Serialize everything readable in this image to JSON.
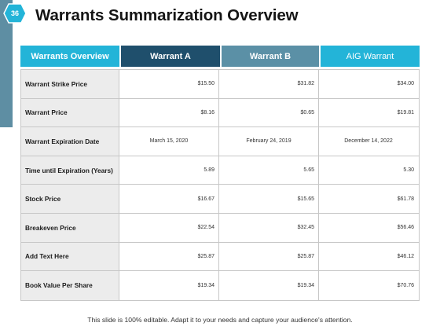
{
  "slide_number": "36",
  "title": "Warrants Summarization Overview",
  "table": {
    "headers": [
      "Warrants Overview",
      "Warrant A",
      "Warrant B",
      "AIG Warrant"
    ],
    "rows": [
      {
        "label": "Warrant Strike Price",
        "values": [
          "$15.50",
          "$31.82",
          "$34.00"
        ]
      },
      {
        "label": "Warrant Price",
        "values": [
          "$8.16",
          "$0.65",
          "$19.81"
        ]
      },
      {
        "label": "Warrant Expiration Date",
        "values": [
          "March 15, 2020",
          "February 24, 2019",
          "December 14, 2022"
        ]
      },
      {
        "label": "Time until Expiration (Years)",
        "values": [
          "5.89",
          "5.65",
          "5.30"
        ]
      },
      {
        "label": "Stock Price",
        "values": [
          "$16.67",
          "$15.65",
          "$61.78"
        ]
      },
      {
        "label": "Breakeven Price",
        "values": [
          "$22.54",
          "$32.45",
          "$56.46"
        ]
      },
      {
        "label": "Add Text Here",
        "values": [
          "$25.87",
          "$25.87",
          "$46.12"
        ]
      },
      {
        "label": "Book Value Per Share",
        "values": [
          "$19.34",
          "$19.34",
          "$70.76"
        ]
      }
    ]
  },
  "footer": "This slide is 100% editable. Adapt it to your needs and capture your audience's attention.",
  "colors": {
    "accent_cyan": "#23b4d8",
    "dark_teal": "#1f4f6c",
    "mid_teal": "#5b90a6",
    "label_bg": "#ececec"
  }
}
